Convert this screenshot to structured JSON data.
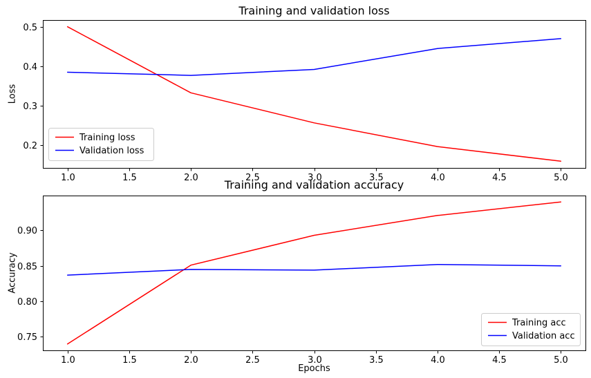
{
  "chart_data": [
    {
      "type": "line",
      "title": "Training and validation loss",
      "xlabel": "",
      "ylabel": "Loss",
      "x": [
        1.0,
        2.0,
        3.0,
        4.0,
        5.0
      ],
      "xlim": [
        0.8,
        5.2
      ],
      "ylim": [
        0.143,
        0.517
      ],
      "xticks": [
        1.0,
        1.5,
        2.0,
        2.5,
        3.0,
        3.5,
        4.0,
        4.5,
        5.0
      ],
      "xtick_labels": [
        "1.0",
        "1.5",
        "2.0",
        "2.5",
        "3.0",
        "3.5",
        "4.0",
        "4.5",
        "5.0"
      ],
      "yticks": [
        0.2,
        0.3,
        0.4,
        0.5
      ],
      "ytick_labels": [
        "0.2",
        "0.3",
        "0.4",
        "0.5"
      ],
      "grid": false,
      "legend_position": "lower left",
      "series": [
        {
          "name": "Training loss",
          "color": "#ff0000",
          "values": [
            0.5,
            0.333,
            0.257,
            0.197,
            0.16
          ]
        },
        {
          "name": "Validation loss",
          "color": "#0000ff",
          "values": [
            0.385,
            0.377,
            0.392,
            0.445,
            0.47
          ]
        }
      ]
    },
    {
      "type": "line",
      "title": "Training and validation accuracy",
      "xlabel": "Epochs",
      "ylabel": "Accuracy",
      "x": [
        1.0,
        2.0,
        3.0,
        4.0,
        5.0
      ],
      "xlim": [
        0.8,
        5.2
      ],
      "ylim": [
        0.731,
        0.949
      ],
      "xticks": [
        1.0,
        1.5,
        2.0,
        2.5,
        3.0,
        3.5,
        4.0,
        4.5,
        5.0
      ],
      "xtick_labels": [
        "1.0",
        "1.5",
        "2.0",
        "2.5",
        "3.0",
        "3.5",
        "4.0",
        "4.5",
        "5.0"
      ],
      "yticks": [
        0.75,
        0.8,
        0.85,
        0.9
      ],
      "ytick_labels": [
        "0.75",
        "0.80",
        "0.85",
        "0.90"
      ],
      "grid": false,
      "legend_position": "lower right",
      "series": [
        {
          "name": "Training acc",
          "color": "#ff0000",
          "values": [
            0.74,
            0.851,
            0.893,
            0.921,
            0.94
          ]
        },
        {
          "name": "Validation acc",
          "color": "#0000ff",
          "values": [
            0.837,
            0.845,
            0.844,
            0.852,
            0.85
          ]
        }
      ]
    }
  ]
}
